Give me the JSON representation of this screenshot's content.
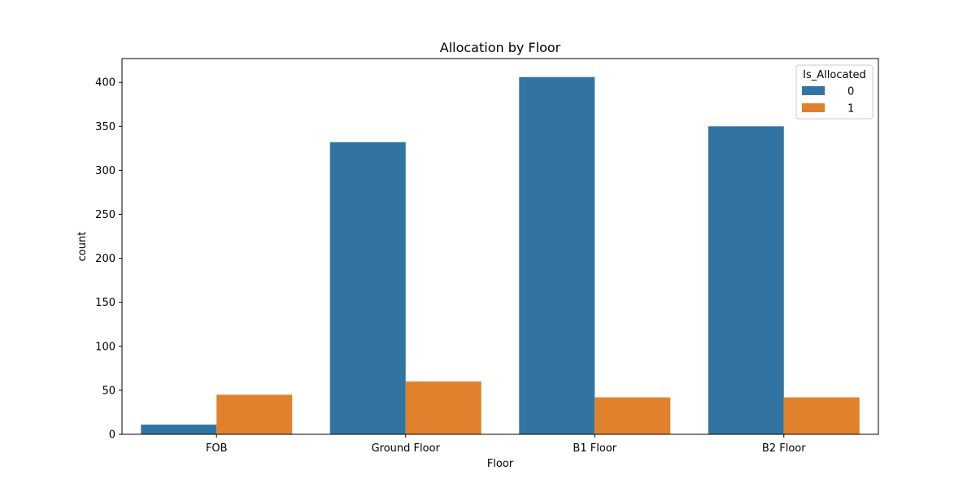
{
  "chart_data": {
    "type": "bar",
    "title": "Allocation by Floor",
    "xlabel": "Floor",
    "ylabel": "count",
    "categories": [
      "FOB",
      "Ground Floor",
      "B1 Floor",
      "B2 Floor"
    ],
    "series": [
      {
        "name": "0",
        "color": "#3274a1",
        "values": [
          11,
          332,
          406,
          350
        ]
      },
      {
        "name": "1",
        "color": "#e1812c",
        "values": [
          45,
          60,
          42,
          42
        ]
      }
    ],
    "ylim": [
      0,
      427
    ],
    "yticks": [
      0,
      50,
      100,
      150,
      200,
      250,
      300,
      350,
      400
    ],
    "legend": {
      "title": "Is_Allocated",
      "position": "top-right"
    },
    "grid": false
  }
}
